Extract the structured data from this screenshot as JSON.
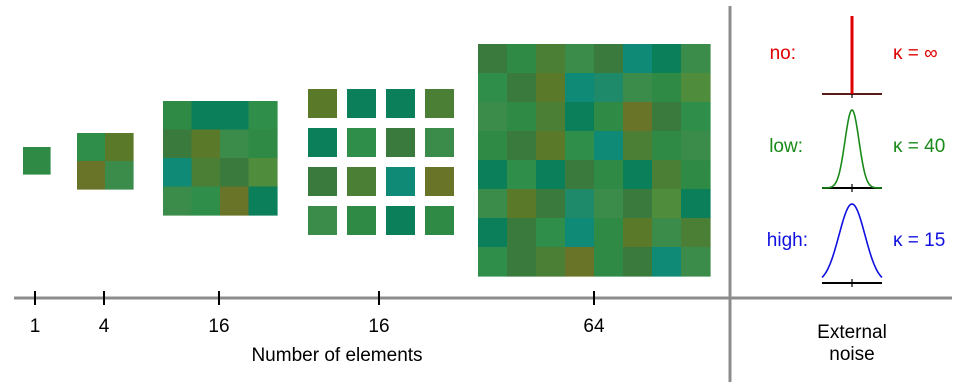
{
  "colors": {
    "axis": "#8c8c8c",
    "no": "#e00000",
    "no_base": "#5a1a1a",
    "low": "#1a8a1a",
    "high": "#1010e0",
    "patch_palette": [
      "#2e8a44",
      "#3a7a3c",
      "#0a7f5a",
      "#4a7f35",
      "#5a7a2a",
      "#2f8f52",
      "#1f8a6a",
      "#3b8b4b",
      "#6a7428",
      "#0e8a76",
      "#277f44",
      "#4f8c3c"
    ]
  },
  "axis": {
    "title": "Number of elements",
    "ticks": [
      "1",
      "4",
      "16",
      "16",
      "64"
    ]
  },
  "external_noise": {
    "title_line1": "External",
    "title_line2": "noise",
    "levels": [
      {
        "label": "no:",
        "kappa": "κ = ∞",
        "color_key": "no",
        "shape": "spike"
      },
      {
        "label": "low:",
        "kappa": "κ = 40",
        "color_key": "low",
        "shape": "narrow"
      },
      {
        "label": "high:",
        "kappa": "κ = 15",
        "color_key": "high",
        "shape": "wide"
      }
    ]
  },
  "patches": [
    {
      "name": "patch-1",
      "n": 1,
      "grid": 1,
      "gap": false,
      "colors": [
        "#2e8a44"
      ]
    },
    {
      "name": "patch-4",
      "n": 4,
      "grid": 2,
      "gap": false,
      "colors": [
        "#2f8f4a",
        "#5a7a2a",
        "#6a7428",
        "#3b8b4b"
      ]
    },
    {
      "name": "patch-16-contiguous",
      "n": 16,
      "grid": 4,
      "gap": false,
      "colors": [
        "#2e8a44",
        "#0a7f5a",
        "#0a7f5a",
        "#2f8f4a",
        "#3a7a3c",
        "#5a7a2a",
        "#3b8b4b",
        "#2e8a44",
        "#0e8a76",
        "#4a7f35",
        "#3a7a3c",
        "#4f8c3c",
        "#3b8b4b",
        "#2f8f4a",
        "#6a7428",
        "#0a7f5a"
      ]
    },
    {
      "name": "patch-16-spaced",
      "n": 16,
      "grid": 4,
      "gap": true,
      "colors": [
        "#5a7a2a",
        "#0a7f5a",
        "#0a7f5a",
        "#4a7f35",
        "#0a7f5a",
        "#2f8f4a",
        "#3a7a3c",
        "#3b8b4b",
        "#3a7a3c",
        "#4a7f35",
        "#0e8a76",
        "#6a7428",
        "#3b8b4b",
        "#2e8a44",
        "#0a7f5a",
        "#2e8a44"
      ]
    },
    {
      "name": "patch-64",
      "n": 64,
      "grid": 8,
      "gap": false,
      "colors": [
        "#3a7a3c",
        "#2e8a44",
        "#4a7f35",
        "#3b8b4b",
        "#3a7a3c",
        "#0e8a76",
        "#0a7f5a",
        "#3b8b4b",
        "#2f8f4a",
        "#3a7a3c",
        "#5a7a2a",
        "#0e8a76",
        "#1f8a6a",
        "#3b8b4b",
        "#2e8a44",
        "#4f8c3c",
        "#3b8b4b",
        "#2e8a44",
        "#4a7f35",
        "#0a7f5a",
        "#2e8a44",
        "#6a7428",
        "#3a7a3c",
        "#2f8f4a",
        "#2e8a44",
        "#3a7a3c",
        "#5a7a2a",
        "#2f8f4a",
        "#0e8a76",
        "#4a7f35",
        "#2e8a44",
        "#3b8b4b",
        "#0a7f5a",
        "#2f8f4a",
        "#0a7f5a",
        "#3a7a3c",
        "#2e8a44",
        "#0a7f5a",
        "#4a7f35",
        "#2e8a44",
        "#3b8b4b",
        "#5a7a2a",
        "#3a7a3c",
        "#1f8a6a",
        "#3b8b4b",
        "#3a7a3c",
        "#4f8c3c",
        "#0a7f5a",
        "#0a7f5a",
        "#3a7a3c",
        "#2f8f4a",
        "#0e8a76",
        "#2e8a44",
        "#5a7a2a",
        "#3b8b4b",
        "#4a7f35",
        "#2f8f4a",
        "#3a7a3c",
        "#4a7f35",
        "#6a7428",
        "#2e8a44",
        "#3a7a3c",
        "#0e8a76",
        "#3b8b4b"
      ]
    }
  ]
}
